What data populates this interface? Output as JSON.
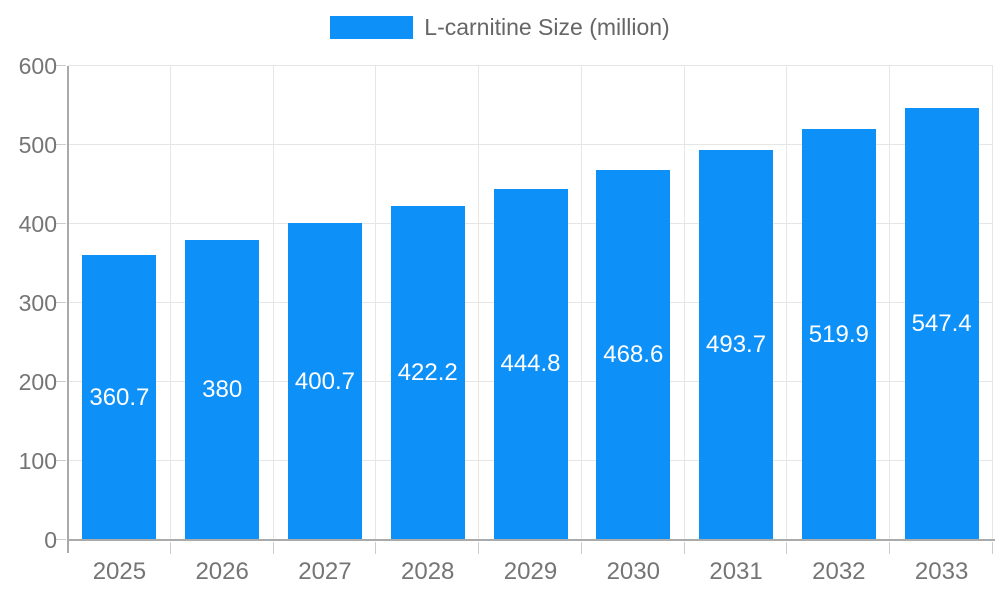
{
  "chart_data": {
    "type": "bar",
    "title": "",
    "xlabel": "",
    "ylabel": "",
    "categories": [
      "2025",
      "2026",
      "2027",
      "2028",
      "2029",
      "2030",
      "2031",
      "2032",
      "2033"
    ],
    "series": [
      {
        "name": "L-carnitine Size (million)",
        "values": [
          360.7,
          380,
          400.7,
          422.2,
          444.8,
          468.6,
          493.7,
          519.9,
          547.4
        ],
        "color": "#0d90f8"
      }
    ],
    "ylim": [
      0,
      600
    ],
    "yticks": [
      0,
      100,
      200,
      300,
      400,
      500,
      600
    ],
    "grid": true,
    "legend_position": "top",
    "bar_label_position": "center-inside"
  },
  "colors": {
    "bar_label_text": "#ffffff",
    "axis_line": "#aaaaaa",
    "gridline": "#e6e6e6",
    "tick_mark": "#cccccc",
    "axis_text": "#757575",
    "legend_text": "#666666"
  }
}
